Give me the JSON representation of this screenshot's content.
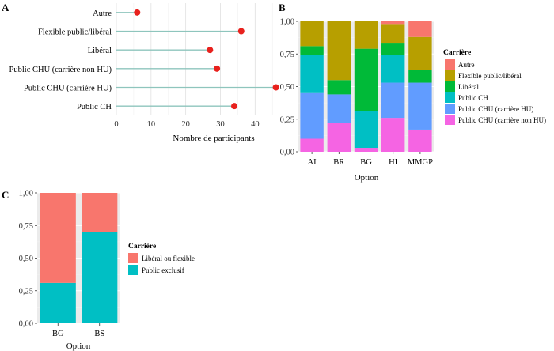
{
  "chart_data": [
    {
      "panel": "A",
      "type": "lollipop",
      "categories": [
        "Autre",
        "Flexible public/libéral",
        "Libéral",
        "Public CHU (carrière non HU)",
        "Public CHU (carrière HU)",
        "Public CH"
      ],
      "values": [
        6,
        36,
        27,
        29,
        46,
        34
      ],
      "xlabel": "Nombre de participants",
      "xlim": [
        0,
        47
      ],
      "xticks": [
        "0",
        "10",
        "20",
        "30",
        "40"
      ],
      "grid": true,
      "colors": {
        "point": "#e8211d",
        "stem": "#8ec5bd"
      }
    },
    {
      "panel": "B",
      "type": "bar",
      "stacked": true,
      "categories": [
        "AI",
        "BR",
        "BG",
        "HI",
        "MMGP"
      ],
      "xlabel": "Option",
      "ylim": [
        0,
        1
      ],
      "yticks": [
        "0,00",
        "0,25",
        "0,50",
        "0,75",
        "1,00"
      ],
      "legend_title": "Carrière",
      "legend_position": "right",
      "series": [
        {
          "name": "Public CHU (carrière non HU)",
          "color": "#f564e3",
          "values": [
            0.1,
            0.22,
            0.03,
            0.26,
            0.17
          ]
        },
        {
          "name": "Public CHU (carrière HU)",
          "color": "#619cff",
          "values": [
            0.35,
            0.22,
            0.0,
            0.27,
            0.36
          ]
        },
        {
          "name": "Public CH",
          "color": "#00bfc4",
          "values": [
            0.29,
            0.0,
            0.28,
            0.21,
            0.0
          ]
        },
        {
          "name": "Libéral",
          "color": "#00ba38",
          "values": [
            0.07,
            0.11,
            0.48,
            0.09,
            0.1
          ]
        },
        {
          "name": "Flexible public/libéral",
          "color": "#b79f00",
          "values": [
            0.19,
            0.45,
            0.21,
            0.15,
            0.25
          ]
        },
        {
          "name": "Autre",
          "color": "#f8766d",
          "values": [
            0.0,
            0.0,
            0.0,
            0.02,
            0.12
          ]
        }
      ]
    },
    {
      "panel": "C",
      "type": "bar",
      "stacked": true,
      "categories": [
        "BG",
        "BS"
      ],
      "xlabel": "Option",
      "ylim": [
        0,
        1
      ],
      "yticks": [
        "0,00",
        "0,25",
        "0,50",
        "0,75",
        "1,00"
      ],
      "legend_title": "Carrière",
      "legend_position": "right",
      "series": [
        {
          "name": "Public exclusif",
          "color": "#00bfc4",
          "values": [
            0.31,
            0.7
          ]
        },
        {
          "name": "Libéral ou flexible",
          "color": "#f8766d",
          "values": [
            0.69,
            0.3
          ]
        }
      ]
    }
  ]
}
